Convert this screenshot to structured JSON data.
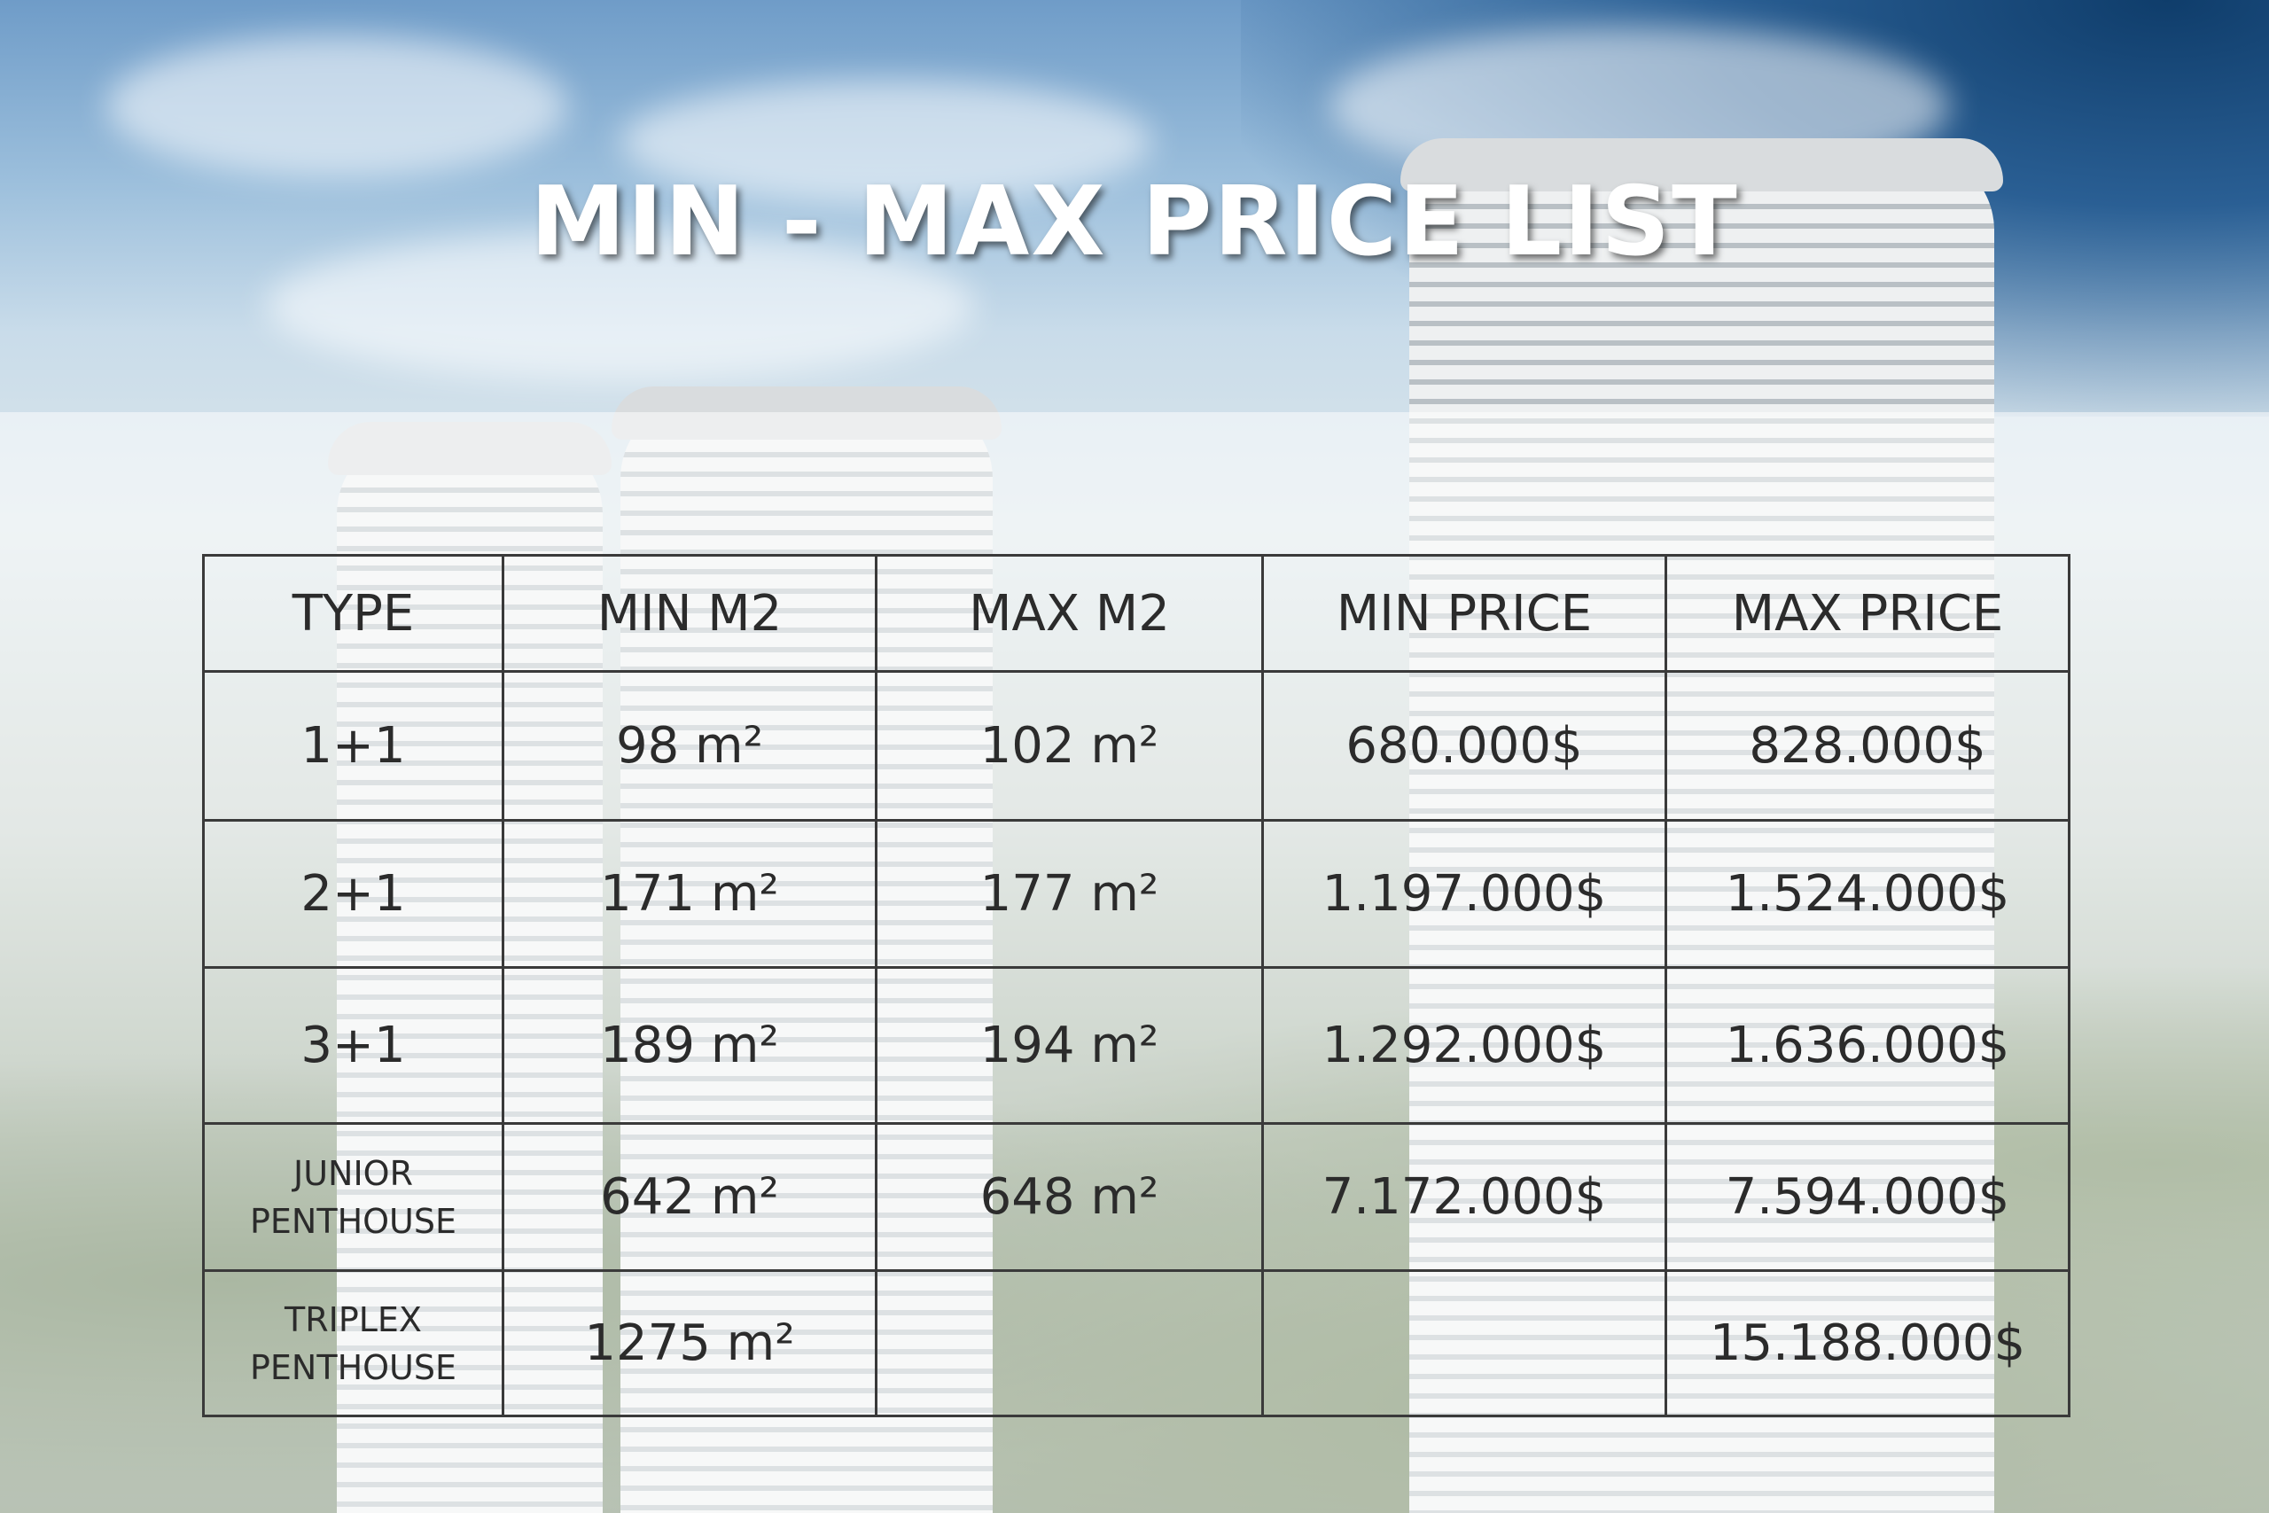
{
  "title": "MIN - MAX PRICE LIST",
  "table": {
    "headers": [
      "TYPE",
      "MIN M2",
      "MAX M2",
      "MIN PRICE",
      "MAX PRICE"
    ],
    "rows": [
      {
        "type_line1": "1+1",
        "type_line2": "",
        "min_m2": "98 m²",
        "max_m2": "102 m²",
        "min_price": "680.000$",
        "max_price": "828.000$"
      },
      {
        "type_line1": "2+1",
        "type_line2": "",
        "min_m2": "171 m²",
        "max_m2": "177 m²",
        "min_price": "1.197.000$",
        "max_price": "1.524.000$"
      },
      {
        "type_line1": "3+1",
        "type_line2": "",
        "min_m2": "189 m²",
        "max_m2": "194 m²",
        "min_price": "1.292.000$",
        "max_price": "1.636.000$"
      },
      {
        "type_line1": "JUNIOR",
        "type_line2": "PENTHOUSE",
        "min_m2": "642 m²",
        "max_m2": "648 m²",
        "min_price": "7.172.000$",
        "max_price": "7.594.000$"
      },
      {
        "type_line1": "TRIPLEX",
        "type_line2": "PENTHOUSE",
        "min_m2": "1275 m²",
        "max_m2": "",
        "min_price": "",
        "max_price": "15.188.000$"
      }
    ]
  },
  "colors": {
    "title": "#ffffff",
    "grid": "#3a3a3a",
    "text": "#2b2b2b"
  }
}
